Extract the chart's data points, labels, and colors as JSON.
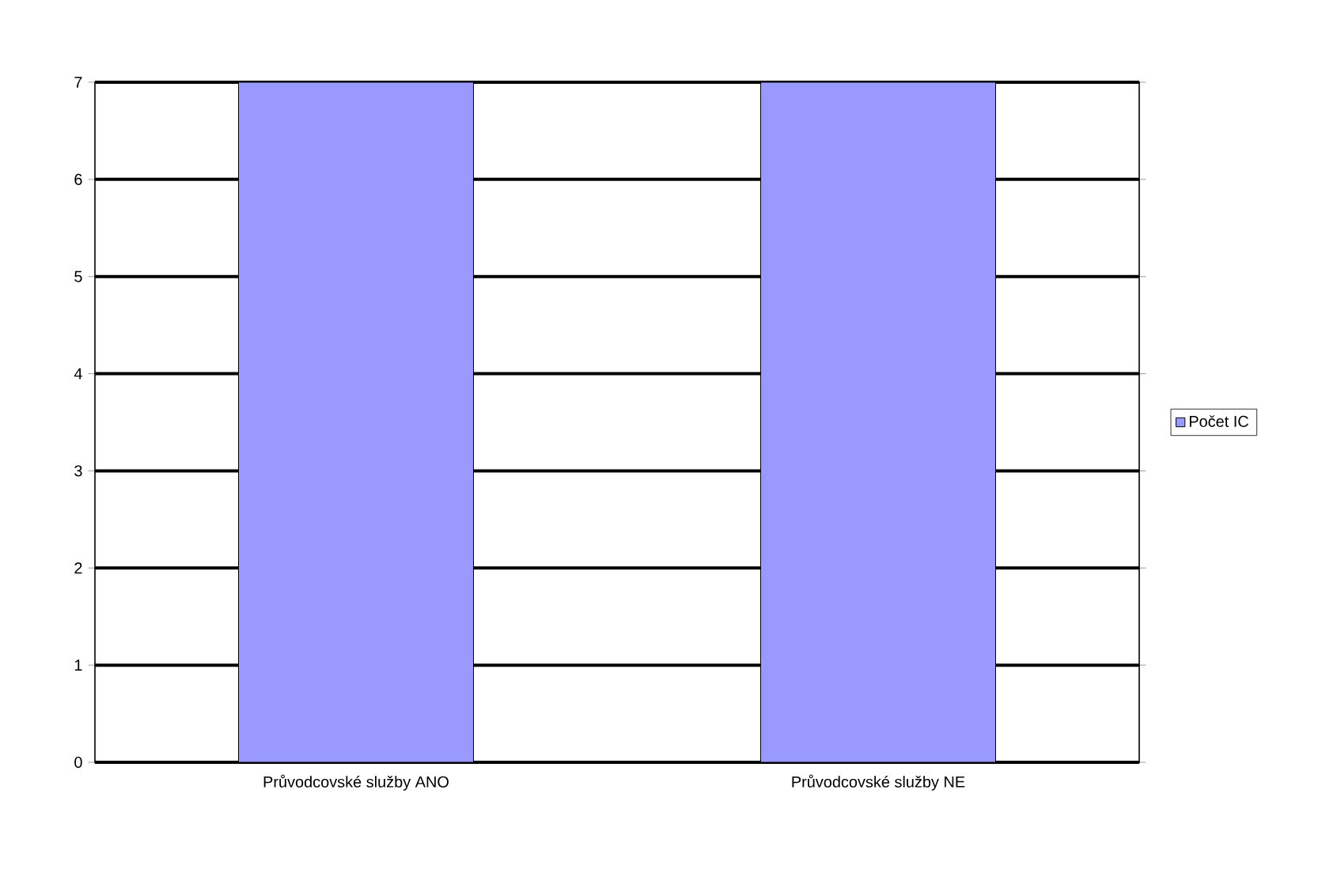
{
  "chart_data": {
    "type": "bar",
    "categories": [
      "Průvodcovské služby ANO",
      "Průvodcovské služby NE"
    ],
    "series": [
      {
        "name": "Počet IC",
        "color": "#9999ff",
        "values": [
          7,
          7
        ]
      }
    ],
    "ylim": [
      0,
      7
    ],
    "yticks": [
      0,
      1,
      2,
      3,
      4,
      5,
      6,
      7
    ],
    "grid": "y",
    "legend": "right"
  }
}
